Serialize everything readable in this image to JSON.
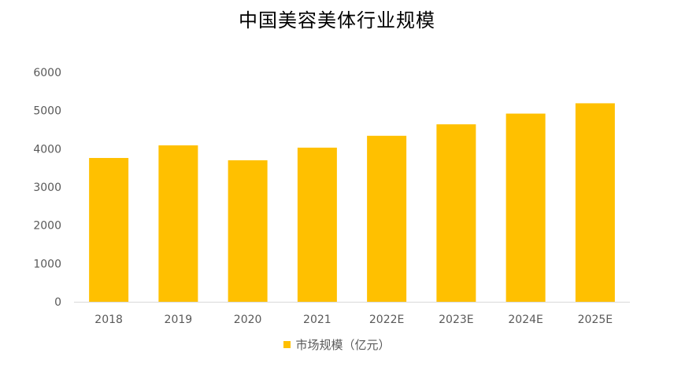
{
  "chart_data": {
    "type": "bar",
    "title": "中国美容美体行业规模",
    "categories": [
      "2018",
      "2019",
      "2020",
      "2021",
      "2022E",
      "2023E",
      "2024E",
      "2025E"
    ],
    "series": [
      {
        "name": "市场规模（亿元）",
        "values": [
          3760,
          4090,
          3700,
          4030,
          4340,
          4640,
          4920,
          5190
        ]
      }
    ],
    "ylim": [
      0,
      6000
    ],
    "yticks": [
      "0",
      "1000",
      "2000",
      "3000",
      "4000",
      "5000",
      "6000"
    ],
    "grid": false,
    "legend_position": "bottom",
    "colors": {
      "bar": "#FFC000",
      "axis": "#D9D9D9",
      "text": "#595959"
    }
  }
}
